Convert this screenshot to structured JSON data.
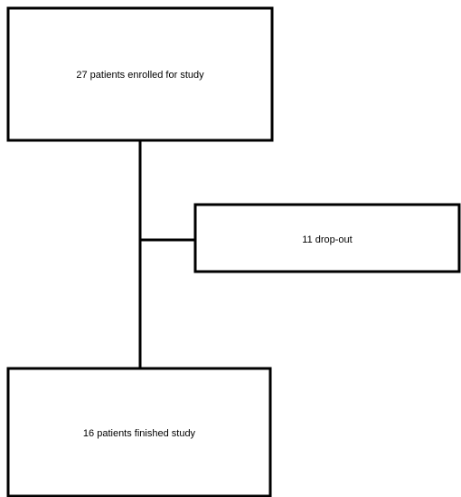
{
  "nodes": [
    {
      "label": "27 patients enrolled for study"
    },
    {
      "label": "11 drop-out"
    },
    {
      "label": "16 patients finished study"
    }
  ]
}
